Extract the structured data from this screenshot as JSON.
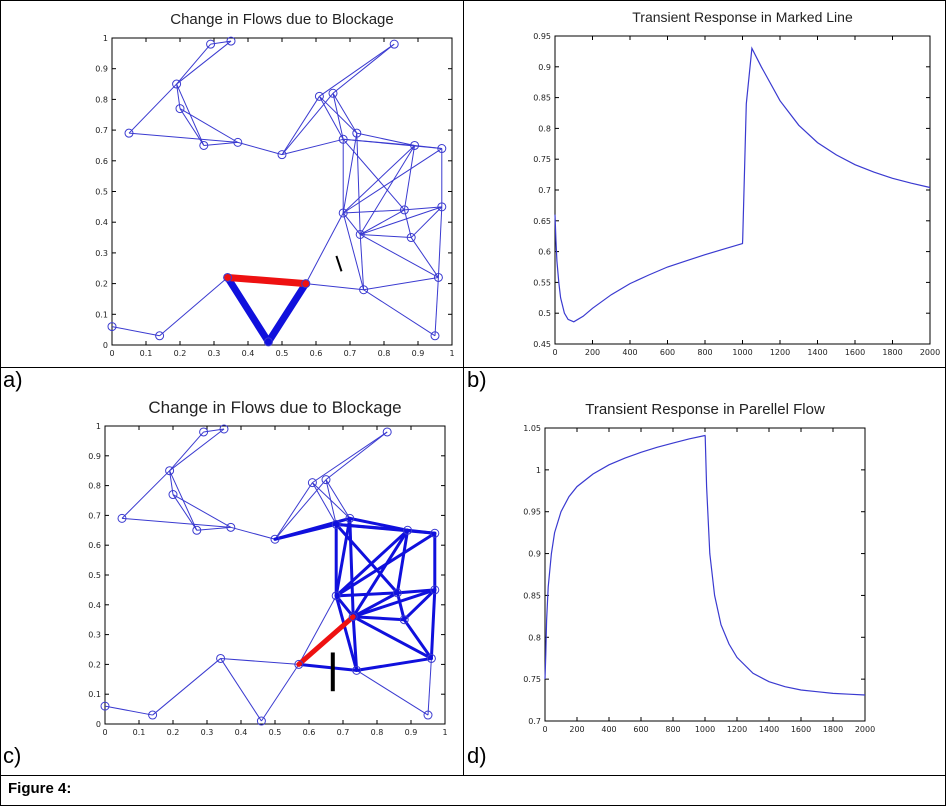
{
  "caption": "Figure 4:",
  "panel_labels": [
    "a)",
    "b)",
    "c)",
    "d)"
  ],
  "colors": {
    "line": "#3a3ad0",
    "thick_blue": "#1010dd",
    "red": "#ee1111",
    "black": "#000000"
  },
  "chart_data": [
    {
      "type": "scatter",
      "title": "Change in Flows due to Blockage",
      "xlim": [
        0,
        1
      ],
      "ylim": [
        0,
        1
      ],
      "xticks": [
        "0",
        "0.1",
        "0.2",
        "0.3",
        "0.4",
        "0.5",
        "0.6",
        "0.7",
        "0.8",
        "0.9",
        "1"
      ],
      "yticks": [
        "0",
        "0.1",
        "0.2",
        "0.3",
        "0.4",
        "0.5",
        "0.6",
        "0.7",
        "0.8",
        "0.9",
        "1"
      ],
      "nodes": [
        [
          0.29,
          0.98
        ],
        [
          0.35,
          0.99
        ],
        [
          0.83,
          0.98
        ],
        [
          0.19,
          0.85
        ],
        [
          0.05,
          0.69
        ],
        [
          0.2,
          0.77
        ],
        [
          0.27,
          0.65
        ],
        [
          0.37,
          0.66
        ],
        [
          0.5,
          0.62
        ],
        [
          0.61,
          0.81
        ],
        [
          0.65,
          0.82
        ],
        [
          0.72,
          0.69
        ],
        [
          0.68,
          0.67
        ],
        [
          0.89,
          0.65
        ],
        [
          0.97,
          0.64
        ],
        [
          0.68,
          0.43
        ],
        [
          0.73,
          0.36
        ],
        [
          0.86,
          0.44
        ],
        [
          0.97,
          0.45
        ],
        [
          0.88,
          0.35
        ],
        [
          0.96,
          0.22
        ],
        [
          0.74,
          0.18
        ],
        [
          0.57,
          0.2
        ],
        [
          0.34,
          0.22
        ],
        [
          0.46,
          0.01
        ],
        [
          0.14,
          0.03
        ],
        [
          0.0,
          0.06
        ],
        [
          0.95,
          0.03
        ]
      ],
      "edges": [
        [
          0,
          1
        ],
        [
          0,
          3
        ],
        [
          1,
          3
        ],
        [
          3,
          4
        ],
        [
          3,
          5
        ],
        [
          3,
          6
        ],
        [
          5,
          6
        ],
        [
          4,
          7
        ],
        [
          5,
          7
        ],
        [
          6,
          7
        ],
        [
          7,
          8
        ],
        [
          8,
          9
        ],
        [
          8,
          10
        ],
        [
          9,
          2
        ],
        [
          10,
          2
        ],
        [
          9,
          12
        ],
        [
          10,
          11
        ],
        [
          9,
          11
        ],
        [
          10,
          12
        ],
        [
          11,
          13
        ],
        [
          12,
          13
        ],
        [
          13,
          14
        ],
        [
          8,
          12
        ],
        [
          11,
          15
        ],
        [
          12,
          15
        ],
        [
          12,
          14
        ],
        [
          13,
          15
        ],
        [
          14,
          15
        ],
        [
          13,
          17
        ],
        [
          14,
          18
        ],
        [
          13,
          16
        ],
        [
          15,
          16
        ],
        [
          15,
          17
        ],
        [
          16,
          17
        ],
        [
          17,
          18
        ],
        [
          16,
          18
        ],
        [
          16,
          19
        ],
        [
          17,
          19
        ],
        [
          18,
          19
        ],
        [
          19,
          20
        ],
        [
          18,
          20
        ],
        [
          16,
          20
        ],
        [
          21,
          20
        ],
        [
          15,
          21
        ],
        [
          16,
          21
        ],
        [
          21,
          22
        ],
        [
          22,
          15
        ],
        [
          22,
          23
        ],
        [
          23,
          24
        ],
        [
          22,
          24
        ],
        [
          23,
          25
        ],
        [
          25,
          26
        ],
        [
          20,
          27
        ],
        [
          21,
          27
        ],
        [
          11,
          16
        ],
        [
          12,
          17
        ]
      ],
      "thick_blue_edges": [
        [
          23,
          24
        ],
        [
          22,
          24
        ]
      ],
      "red_edges": [
        [
          23,
          22
        ]
      ],
      "black_marks": [
        [
          [
            0.66,
            0.29
          ],
          [
            0.675,
            0.24
          ]
        ]
      ]
    },
    {
      "type": "line",
      "title": "Transient Response in Marked Line",
      "xlim": [
        0,
        2000
      ],
      "ylim": [
        0.45,
        0.95
      ],
      "xticks": [
        "0",
        "200",
        "400",
        "600",
        "800",
        "1000",
        "1200",
        "1400",
        "1600",
        "1800",
        "2000"
      ],
      "yticks": [
        "0.45",
        "0.5",
        "0.55",
        "0.6",
        "0.65",
        "0.7",
        "0.75",
        "0.8",
        "0.85",
        "0.9",
        "0.95"
      ],
      "x": [
        0,
        5,
        10,
        20,
        30,
        50,
        70,
        100,
        150,
        200,
        300,
        400,
        500,
        600,
        700,
        800,
        900,
        1000,
        1001,
        1020,
        1050,
        1100,
        1200,
        1300,
        1400,
        1500,
        1600,
        1700,
        1800,
        1900,
        2000
      ],
      "y": [
        0.66,
        0.62,
        0.585,
        0.55,
        0.525,
        0.5,
        0.49,
        0.486,
        0.495,
        0.508,
        0.53,
        0.548,
        0.562,
        0.575,
        0.585,
        0.595,
        0.604,
        0.613,
        0.62,
        0.84,
        0.93,
        0.9,
        0.845,
        0.805,
        0.777,
        0.757,
        0.741,
        0.729,
        0.719,
        0.711,
        0.704
      ]
    },
    {
      "type": "scatter",
      "title": "Change in Flows due to Blockage",
      "xlim": [
        0,
        1
      ],
      "ylim": [
        0,
        1
      ],
      "xticks": [
        "0",
        "0.1",
        "0.2",
        "0.3",
        "0.4",
        "0.5",
        "0.6",
        "0.7",
        "0.8",
        "0.9",
        "1"
      ],
      "yticks": [
        "0",
        "0.1",
        "0.2",
        "0.3",
        "0.4",
        "0.5",
        "0.6",
        "0.7",
        "0.8",
        "0.9",
        "1"
      ],
      "thick_blue_edges": [
        [
          8,
          11
        ],
        [
          8,
          12
        ],
        [
          11,
          13
        ],
        [
          12,
          13
        ],
        [
          13,
          14
        ],
        [
          11,
          15
        ],
        [
          12,
          15
        ],
        [
          13,
          15
        ],
        [
          14,
          15
        ],
        [
          13,
          17
        ],
        [
          14,
          18
        ],
        [
          13,
          16
        ],
        [
          15,
          16
        ],
        [
          15,
          17
        ],
        [
          16,
          17
        ],
        [
          17,
          18
        ],
        [
          16,
          18
        ],
        [
          16,
          19
        ],
        [
          17,
          19
        ],
        [
          18,
          19
        ],
        [
          19,
          20
        ],
        [
          18,
          20
        ],
        [
          16,
          20
        ],
        [
          21,
          20
        ],
        [
          15,
          21
        ],
        [
          16,
          21
        ],
        [
          21,
          22
        ],
        [
          11,
          16
        ],
        [
          12,
          17
        ],
        [
          12,
          14
        ]
      ],
      "red_edges": [
        [
          22,
          16
        ]
      ],
      "black_marks": [
        [
          [
            0.67,
            0.24
          ],
          [
            0.67,
            0.11
          ]
        ]
      ]
    },
    {
      "type": "line",
      "title": "Transient Response in Parellel Flow",
      "xlim": [
        0,
        2000
      ],
      "ylim": [
        0.7,
        1.05
      ],
      "xticks": [
        "0",
        "200",
        "400",
        "600",
        "800",
        "1000",
        "1200",
        "1400",
        "1600",
        "1800",
        "2000"
      ],
      "yticks": [
        "0.7",
        "0.75",
        "0.8",
        "0.85",
        "0.9",
        "0.95",
        "1",
        "1.05"
      ],
      "x": [
        0,
        5,
        10,
        20,
        40,
        60,
        100,
        150,
        200,
        300,
        400,
        500,
        600,
        700,
        800,
        900,
        1000,
        1001,
        1010,
        1030,
        1060,
        1100,
        1150,
        1200,
        1300,
        1400,
        1500,
        1600,
        1700,
        1800,
        1900,
        2000
      ],
      "y": [
        0.75,
        0.78,
        0.82,
        0.86,
        0.9,
        0.925,
        0.95,
        0.968,
        0.98,
        0.995,
        1.006,
        1.014,
        1.021,
        1.027,
        1.032,
        1.037,
        1.041,
        1.04,
        0.98,
        0.9,
        0.85,
        0.815,
        0.792,
        0.776,
        0.757,
        0.747,
        0.741,
        0.737,
        0.735,
        0.733,
        0.732,
        0.731
      ]
    }
  ]
}
